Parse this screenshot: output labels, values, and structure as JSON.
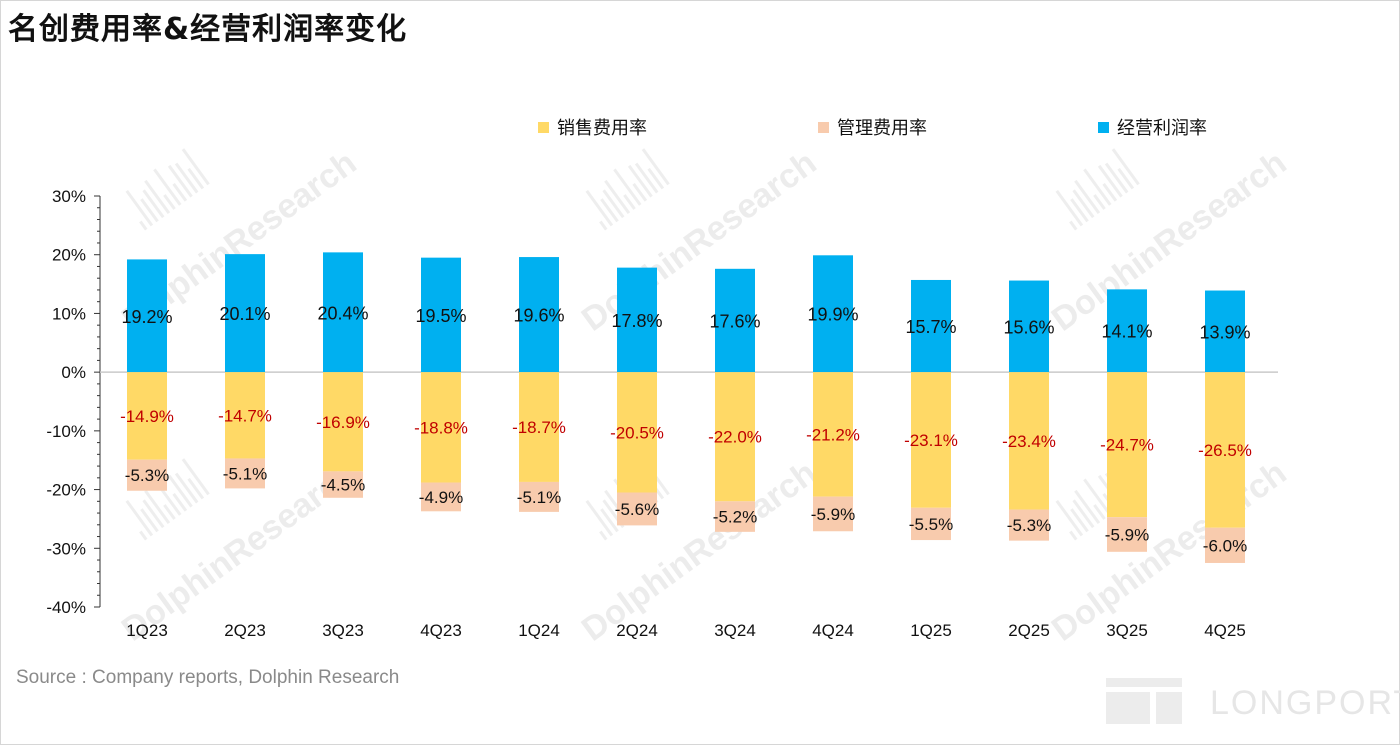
{
  "title": "名创费用率&经营利润率变化",
  "source": "Source : Company reports, Dolphin Research",
  "watermark": "DolphinResearch",
  "logo_text": "LONGPORT",
  "legend": [
    {
      "name": "销售费用率",
      "color": "#FFD966"
    },
    {
      "name": "管理费用率",
      "color": "#F8CBAD"
    },
    {
      "name": "经营利润率",
      "color": "#00B0F0"
    }
  ],
  "chart_data": {
    "type": "bar",
    "stacked": true,
    "title": "名创费用率&经营利润率变化",
    "categories": [
      "1Q23",
      "2Q23",
      "3Q23",
      "4Q23",
      "1Q24",
      "2Q24",
      "3Q24",
      "4Q24",
      "1Q25",
      "2Q25",
      "3Q25",
      "4Q25"
    ],
    "series": [
      {
        "name": "销售费用率",
        "color": "#FFD966",
        "label_color": "#C00000",
        "values": [
          -14.9,
          -14.7,
          -16.9,
          -18.8,
          -18.7,
          -20.5,
          -22.0,
          -21.2,
          -23.1,
          -23.4,
          -24.7,
          -26.5
        ],
        "labels": [
          "-14.9%",
          "-14.7%",
          "-16.9%",
          "-18.8%",
          "-18.7%",
          "-20.5%",
          "-22.0%",
          "-21.2%",
          "-23.1%",
          "-23.4%",
          "-24.7%",
          "-26.5%"
        ]
      },
      {
        "name": "管理费用率",
        "color": "#F8CBAD",
        "label_color": "#111111",
        "values": [
          -5.3,
          -5.1,
          -4.5,
          -4.9,
          -5.1,
          -5.6,
          -5.2,
          -5.9,
          -5.5,
          -5.3,
          -5.9,
          -6.0
        ],
        "labels": [
          "-5.3%",
          "-5.1%",
          "-4.5%",
          "-4.9%",
          "-5.1%",
          "-5.6%",
          "-5.2%",
          "-5.9%",
          "-5.5%",
          "-5.3%",
          "-5.9%",
          "-6.0%"
        ]
      },
      {
        "name": "经营利润率",
        "color": "#00B0F0",
        "label_color": "#111111",
        "values": [
          19.2,
          20.1,
          20.4,
          19.5,
          19.6,
          17.8,
          17.6,
          19.9,
          15.7,
          15.6,
          14.1,
          13.9
        ],
        "labels": [
          "19.2%",
          "20.1%",
          "20.4%",
          "19.5%",
          "19.6%",
          "17.8%",
          "17.6%",
          "19.9%",
          "15.7%",
          "15.6%",
          "14.1%",
          "13.9%"
        ]
      }
    ],
    "ylim": [
      -40,
      30
    ],
    "yticks": [
      30,
      20,
      10,
      0,
      -10,
      -20,
      -30,
      -40
    ],
    "ytick_labels": [
      "30%",
      "20%",
      "10%",
      "0%",
      "-10%",
      "-20%",
      "-30%",
      "-40%"
    ],
    "xlabel": "",
    "ylabel": "",
    "grid": false,
    "legend_position": "top"
  }
}
